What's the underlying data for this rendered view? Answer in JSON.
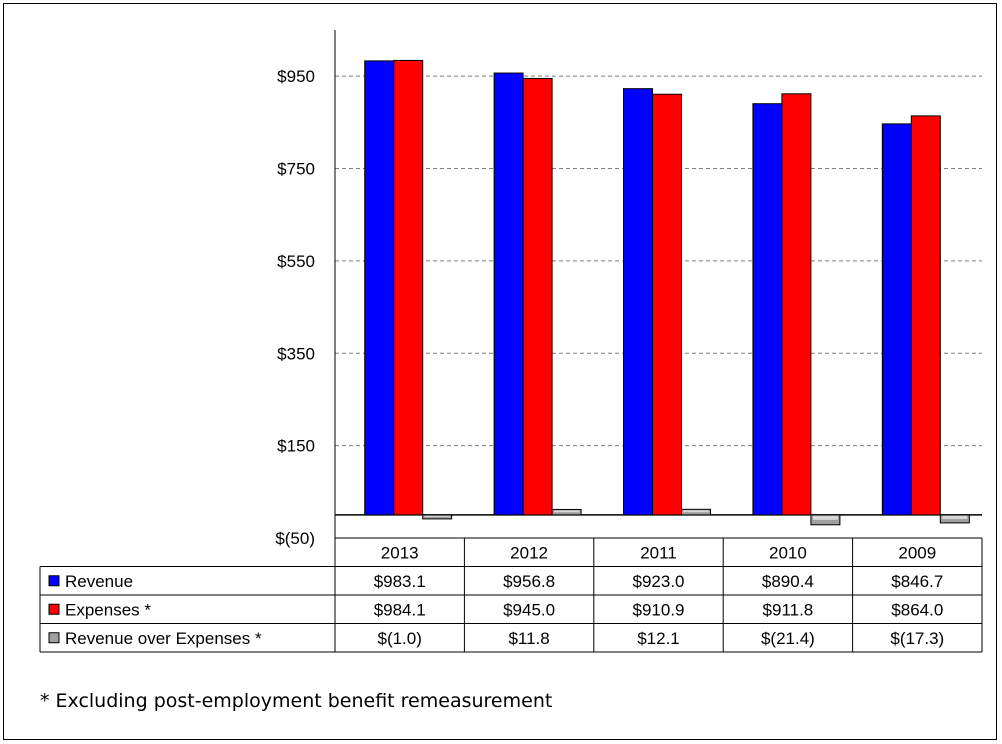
{
  "chart_data": {
    "type": "bar",
    "categories": [
      "2013",
      "2012",
      "2011",
      "2010",
      "2009"
    ],
    "series": [
      {
        "name": "Revenue",
        "marker": "■",
        "values": [
          983.1,
          956.8,
          923.0,
          890.4,
          846.7
        ],
        "display": [
          "$983.1",
          "$956.8",
          "$923.0",
          "$890.4",
          "$846.7"
        ],
        "color": "#0000ff"
      },
      {
        "name": "Expenses *",
        "marker": "■",
        "values": [
          984.1,
          945.0,
          910.9,
          911.8,
          864.0
        ],
        "display": [
          "$984.1",
          "$945.0",
          "$910.9",
          "$911.8",
          "$864.0"
        ],
        "color": "#ff0000"
      },
      {
        "name": "Revenue over Expenses  *",
        "marker": "■",
        "values": [
          -1.0,
          11.8,
          12.1,
          -21.4,
          -17.3
        ],
        "display": [
          "$(1.0)",
          "$11.8",
          "$12.1",
          "$(21.4)",
          "$(17.3)"
        ],
        "color": "#a0a0a0"
      }
    ],
    "ylim": [
      -50,
      1050
    ],
    "y_ticks": [
      -50,
      150,
      350,
      550,
      750,
      950
    ],
    "y_tick_labels": [
      "$(50)",
      "$150",
      "$350",
      "$550",
      "$750",
      "$950"
    ],
    "grid": true,
    "legend": "data-table"
  },
  "footnote": "* Excluding post-employment  benefit remeasurement"
}
